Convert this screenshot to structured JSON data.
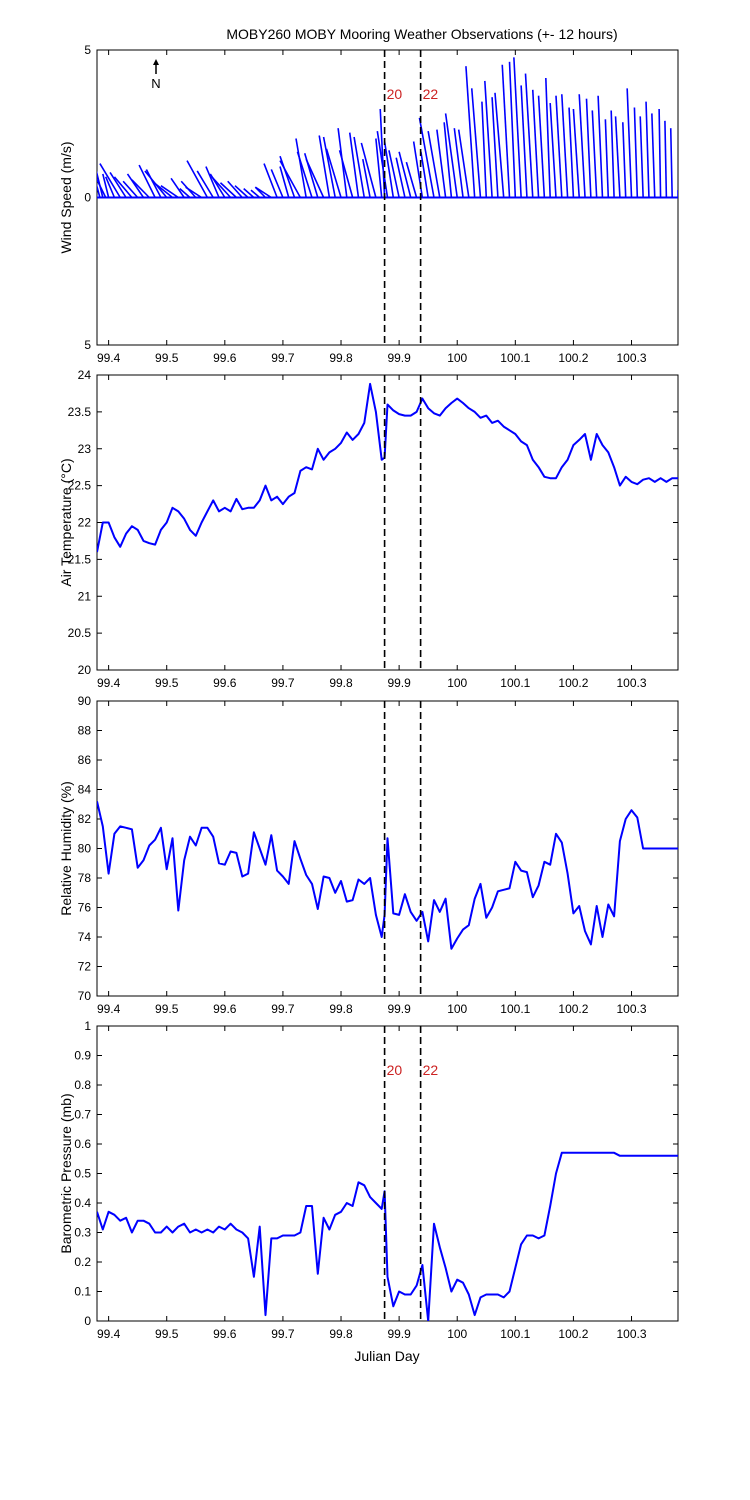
{
  "title": "MOBY260 MOBY Mooring Weather Observations (+- 12 hours)",
  "north_label": "N",
  "colors": {
    "series": "#0000ff",
    "marker": "#000000",
    "marker_label": "#cc2222",
    "axes": "#000000"
  },
  "xlim": [
    99.38,
    100.38
  ],
  "x_ticks": [
    99.4,
    99.5,
    99.6,
    99.7,
    99.8,
    99.9,
    100,
    100.1,
    100.2,
    100.3
  ],
  "x_tick_labels": [
    "99.4",
    "99.5",
    "99.6",
    "99.7",
    "99.8",
    "99.9",
    "100",
    "100.1",
    "100.2",
    "100.3"
  ],
  "xlabel": "Julian Day",
  "markers": [
    {
      "x": 99.875,
      "label": "20"
    },
    {
      "x": 99.937,
      "label": "22"
    }
  ],
  "chart_data": [
    {
      "type": "line",
      "name": "wind",
      "chart_variant": "wind-stick",
      "ylabel": "Wind Speed (m/s)",
      "ylim": [
        -5,
        5
      ],
      "y_ticks": [
        -5,
        0,
        5
      ],
      "y_tick_labels": [
        "5",
        "0",
        "5"
      ],
      "show_marker_labels": true,
      "show_north_arrow": true,
      "sticks": [
        [
          99.38,
          -0.45,
          1.7
        ],
        [
          99.385,
          -0.4,
          1.45
        ],
        [
          99.39,
          -0.3,
          1.2
        ],
        [
          99.395,
          -0.45,
          0.9
        ],
        [
          99.4,
          -0.2,
          0.8
        ],
        [
          99.41,
          -0.3,
          0.7
        ],
        [
          99.42,
          -0.7,
          1.15
        ],
        [
          99.43,
          -0.55,
          0.85
        ],
        [
          99.44,
          -0.6,
          0.7
        ],
        [
          99.45,
          -0.5,
          0.55
        ],
        [
          99.46,
          -0.55,
          0.8
        ],
        [
          99.47,
          -0.6,
          0.6
        ],
        [
          99.48,
          -0.55,
          1.1
        ],
        [
          99.49,
          -0.5,
          0.95
        ],
        [
          99.5,
          -0.75,
          0.9
        ],
        [
          99.51,
          -0.7,
          0.55
        ],
        [
          99.52,
          -0.6,
          0.4
        ],
        [
          99.53,
          -0.45,
          0.65
        ],
        [
          99.54,
          -0.35,
          0.3
        ],
        [
          99.55,
          -0.5,
          0.55
        ],
        [
          99.56,
          -0.55,
          0.35
        ],
        [
          99.57,
          -0.7,
          1.25
        ],
        [
          99.58,
          -0.55,
          0.9
        ],
        [
          99.59,
          -0.45,
          1.05
        ],
        [
          99.6,
          -0.5,
          0.8
        ],
        [
          99.61,
          -0.65,
          0.7
        ],
        [
          99.62,
          -0.55,
          0.5
        ],
        [
          99.63,
          -0.5,
          0.55
        ],
        [
          99.64,
          -0.45,
          0.4
        ],
        [
          99.65,
          -0.35,
          0.3
        ],
        [
          99.66,
          -0.3,
          0.25
        ],
        [
          99.67,
          -0.35,
          0.35
        ],
        [
          99.68,
          -0.55,
          0.35
        ],
        [
          99.69,
          -0.45,
          1.15
        ],
        [
          99.7,
          -0.4,
          0.95
        ],
        [
          99.71,
          -0.3,
          1.05
        ],
        [
          99.72,
          -0.5,
          1.4
        ],
        [
          99.73,
          -0.7,
          1.25
        ],
        [
          99.74,
          -0.35,
          2.0
        ],
        [
          99.75,
          -0.5,
          1.55
        ],
        [
          99.76,
          -0.45,
          1.5
        ],
        [
          99.77,
          -0.6,
          1.3
        ],
        [
          99.78,
          -0.35,
          2.1
        ],
        [
          99.79,
          -0.4,
          2.05
        ],
        [
          99.8,
          -0.5,
          1.65
        ],
        [
          99.81,
          -0.3,
          2.35
        ],
        [
          99.82,
          -0.45,
          1.6
        ],
        [
          99.83,
          -0.3,
          2.2
        ],
        [
          99.84,
          -0.35,
          2.05
        ],
        [
          99.85,
          -0.25,
          1.3
        ],
        [
          99.86,
          -0.5,
          1.85
        ],
        [
          99.87,
          -0.2,
          2.0
        ],
        [
          99.875,
          -0.15,
          3.0
        ],
        [
          99.88,
          -0.35,
          2.25
        ],
        [
          99.89,
          -0.3,
          1.9
        ],
        [
          99.9,
          -0.35,
          1.6
        ],
        [
          99.91,
          -0.3,
          1.35
        ],
        [
          99.92,
          -0.4,
          1.55
        ],
        [
          99.93,
          -0.35,
          1.2
        ],
        [
          99.94,
          -0.3,
          1.9
        ],
        [
          99.95,
          -0.25,
          1.55
        ],
        [
          99.96,
          -0.5,
          2.7
        ],
        [
          99.97,
          -0.4,
          2.25
        ],
        [
          99.98,
          -0.3,
          2.3
        ],
        [
          99.99,
          -0.25,
          2.55
        ],
        [
          100.0,
          -0.4,
          2.85
        ],
        [
          100.01,
          -0.3,
          2.35
        ],
        [
          100.02,
          -0.35,
          2.3
        ],
        [
          100.03,
          -0.3,
          4.45
        ],
        [
          100.04,
          -0.3,
          3.7
        ],
        [
          100.05,
          -0.15,
          3.25
        ],
        [
          100.06,
          -0.25,
          3.95
        ],
        [
          100.07,
          -0.2,
          3.4
        ],
        [
          100.08,
          -0.3,
          3.55
        ],
        [
          100.09,
          -0.25,
          4.5
        ],
        [
          100.1,
          -0.2,
          4.6
        ],
        [
          100.11,
          -0.25,
          4.75
        ],
        [
          100.12,
          -0.2,
          3.8
        ],
        [
          100.13,
          -0.25,
          4.2
        ],
        [
          100.14,
          -0.2,
          3.65
        ],
        [
          100.15,
          -0.2,
          3.45
        ],
        [
          100.16,
          -0.15,
          4.05
        ],
        [
          100.17,
          -0.2,
          3.2
        ],
        [
          100.18,
          -0.2,
          3.45
        ],
        [
          100.19,
          -0.2,
          3.5
        ],
        [
          100.2,
          -0.15,
          3.05
        ],
        [
          100.21,
          -0.2,
          3.0
        ],
        [
          100.22,
          -0.2,
          3.5
        ],
        [
          100.23,
          -0.15,
          3.35
        ],
        [
          100.24,
          -0.15,
          2.95
        ],
        [
          100.25,
          -0.15,
          3.45
        ],
        [
          100.26,
          -0.1,
          2.65
        ],
        [
          100.27,
          -0.1,
          2.95
        ],
        [
          100.28,
          -0.15,
          2.75
        ],
        [
          100.29,
          -0.1,
          2.55
        ],
        [
          100.3,
          -0.15,
          3.7
        ],
        [
          100.31,
          -0.1,
          3.05
        ],
        [
          100.32,
          -0.1,
          2.75
        ],
        [
          100.33,
          -0.1,
          3.25
        ],
        [
          100.34,
          -0.1,
          2.85
        ],
        [
          100.35,
          -0.05,
          3.0
        ],
        [
          100.36,
          -0.05,
          2.6
        ],
        [
          100.37,
          -0.05,
          2.35
        ],
        [
          100.38,
          0,
          0.25
        ]
      ]
    },
    {
      "type": "line",
      "name": "air_temperature",
      "ylabel": "Air Temperature (°C)",
      "ylim": [
        20,
        24
      ],
      "y_ticks": [
        20,
        20.5,
        21,
        21.5,
        22,
        22.5,
        23,
        23.5,
        24
      ],
      "y_tick_labels": [
        "20",
        "20.5",
        "21",
        "21.5",
        "22",
        "22.5",
        "23",
        "23.5",
        "24"
      ],
      "show_marker_labels": false,
      "x": [
        99.38,
        99.39,
        99.4,
        99.41,
        99.42,
        99.43,
        99.44,
        99.45,
        99.46,
        99.47,
        99.48,
        99.49,
        99.5,
        99.51,
        99.52,
        99.53,
        99.54,
        99.55,
        99.56,
        99.57,
        99.58,
        99.59,
        99.6,
        99.61,
        99.62,
        99.63,
        99.64,
        99.65,
        99.66,
        99.67,
        99.68,
        99.69,
        99.7,
        99.71,
        99.72,
        99.73,
        99.74,
        99.75,
        99.76,
        99.77,
        99.78,
        99.79,
        99.8,
        99.81,
        99.82,
        99.83,
        99.84,
        99.85,
        99.86,
        99.87,
        99.875,
        99.88,
        99.89,
        99.9,
        99.91,
        99.92,
        99.93,
        99.94,
        99.95,
        99.96,
        99.97,
        99.98,
        99.99,
        100.0,
        100.01,
        100.02,
        100.03,
        100.04,
        100.05,
        100.06,
        100.07,
        100.08,
        100.09,
        100.1,
        100.11,
        100.12,
        100.13,
        100.14,
        100.15,
        100.16,
        100.17,
        100.18,
        100.19,
        100.2,
        100.21,
        100.22,
        100.23,
        100.24,
        100.25,
        100.26,
        100.27,
        100.28,
        100.29,
        100.3,
        100.31,
        100.32,
        100.33,
        100.34,
        100.35,
        100.36,
        100.37,
        100.38
      ],
      "values": [
        21.6,
        22.0,
        22.0,
        21.8,
        21.67,
        21.85,
        21.95,
        21.9,
        21.75,
        21.72,
        21.7,
        21.9,
        22.0,
        22.2,
        22.15,
        22.05,
        21.9,
        21.82,
        22.0,
        22.15,
        22.3,
        22.15,
        22.2,
        22.15,
        22.32,
        22.18,
        22.2,
        22.2,
        22.3,
        22.5,
        22.3,
        22.35,
        22.25,
        22.35,
        22.4,
        22.7,
        22.75,
        22.72,
        23.0,
        22.85,
        22.95,
        23.0,
        23.08,
        23.22,
        23.12,
        23.2,
        23.35,
        23.88,
        23.5,
        22.85,
        22.88,
        23.6,
        23.52,
        23.47,
        23.45,
        23.45,
        23.5,
        23.68,
        23.55,
        23.48,
        23.45,
        23.55,
        23.62,
        23.68,
        23.62,
        23.55,
        23.5,
        23.42,
        23.45,
        23.35,
        23.38,
        23.3,
        23.25,
        23.2,
        23.1,
        23.05,
        22.85,
        22.75,
        22.62,
        22.6,
        22.6,
        22.75,
        22.85,
        23.05,
        23.12,
        23.2,
        22.85,
        23.2,
        23.05,
        22.95,
        22.75,
        22.5,
        22.62,
        22.55,
        22.52,
        22.58,
        22.6,
        22.55,
        22.6,
        22.55,
        22.6,
        22.6
      ]
    },
    {
      "type": "line",
      "name": "relative_humidity",
      "ylabel": "Relative Humidity (%)",
      "ylim": [
        70,
        90
      ],
      "y_ticks": [
        70,
        72,
        74,
        76,
        78,
        80,
        82,
        84,
        86,
        88,
        90
      ],
      "y_tick_labels": [
        "70",
        "72",
        "74",
        "76",
        "78",
        "80",
        "82",
        "84",
        "86",
        "88",
        "90"
      ],
      "show_marker_labels": false,
      "x": [
        99.38,
        99.39,
        99.4,
        99.41,
        99.42,
        99.43,
        99.44,
        99.45,
        99.46,
        99.47,
        99.48,
        99.49,
        99.5,
        99.51,
        99.52,
        99.53,
        99.54,
        99.55,
        99.56,
        99.57,
        99.58,
        99.59,
        99.6,
        99.61,
        99.62,
        99.63,
        99.64,
        99.65,
        99.66,
        99.67,
        99.68,
        99.69,
        99.7,
        99.71,
        99.72,
        99.73,
        99.74,
        99.75,
        99.76,
        99.77,
        99.78,
        99.79,
        99.8,
        99.81,
        99.82,
        99.83,
        99.84,
        99.85,
        99.86,
        99.87,
        99.875,
        99.88,
        99.89,
        99.9,
        99.91,
        99.92,
        99.93,
        99.94,
        99.95,
        99.96,
        99.97,
        99.98,
        99.99,
        100.0,
        100.01,
        100.02,
        100.03,
        100.04,
        100.05,
        100.06,
        100.07,
        100.08,
        100.09,
        100.1,
        100.11,
        100.12,
        100.13,
        100.14,
        100.15,
        100.16,
        100.17,
        100.18,
        100.19,
        100.2,
        100.21,
        100.22,
        100.23,
        100.24,
        100.25,
        100.26,
        100.27,
        100.28,
        100.29,
        100.3,
        100.31,
        100.32,
        100.33,
        100.34,
        100.35,
        100.36,
        100.37,
        100.38
      ],
      "values": [
        83.2,
        81.5,
        78.3,
        81.0,
        81.5,
        81.4,
        81.3,
        78.7,
        79.2,
        80.2,
        80.6,
        81.4,
        78.6,
        80.7,
        75.8,
        79.2,
        80.8,
        80.2,
        81.4,
        81.4,
        80.8,
        79.0,
        78.9,
        79.8,
        79.7,
        78.1,
        78.3,
        81.1,
        80.0,
        78.9,
        80.9,
        78.5,
        78.1,
        77.6,
        80.5,
        79.3,
        78.2,
        77.6,
        75.9,
        78.1,
        78.0,
        77.0,
        77.8,
        76.4,
        76.5,
        77.9,
        77.6,
        78.0,
        75.5,
        74.0,
        75.5,
        80.7,
        75.6,
        75.5,
        76.9,
        75.7,
        75.1,
        75.7,
        73.7,
        76.5,
        75.7,
        76.6,
        73.2,
        73.9,
        74.5,
        74.8,
        76.6,
        77.6,
        75.3,
        76.0,
        77.1,
        77.2,
        77.3,
        79.1,
        78.5,
        78.4,
        76.7,
        77.5,
        79.1,
        78.9,
        81.0,
        80.4,
        78.3,
        75.6,
        76.1,
        74.4,
        73.5,
        76.1,
        74.0,
        76.2,
        75.4,
        80.5,
        82.0,
        82.6,
        82.1,
        80.0,
        80.0,
        80.0,
        80.0,
        80.0,
        80.0,
        80.0
      ]
    },
    {
      "type": "line",
      "name": "barometric_pressure",
      "ylabel": "Barometric Pressure (mb)",
      "ylim": [
        0,
        1
      ],
      "y_ticks": [
        0,
        0.1,
        0.2,
        0.3,
        0.4,
        0.5,
        0.6,
        0.7,
        0.8,
        0.9,
        1
      ],
      "y_tick_labels": [
        "0",
        "0.1",
        "0.2",
        "0.3",
        "0.4",
        "0.5",
        "0.6",
        "0.7",
        "0.8",
        "0.9",
        "1"
      ],
      "show_marker_labels": true,
      "x": [
        99.38,
        99.39,
        99.4,
        99.41,
        99.42,
        99.43,
        99.44,
        99.45,
        99.46,
        99.47,
        99.48,
        99.49,
        99.5,
        99.51,
        99.52,
        99.53,
        99.54,
        99.55,
        99.56,
        99.57,
        99.58,
        99.59,
        99.6,
        99.61,
        99.62,
        99.63,
        99.64,
        99.65,
        99.66,
        99.67,
        99.68,
        99.69,
        99.7,
        99.71,
        99.72,
        99.73,
        99.74,
        99.75,
        99.76,
        99.77,
        99.78,
        99.79,
        99.8,
        99.81,
        99.82,
        99.83,
        99.84,
        99.85,
        99.86,
        99.87,
        99.875,
        99.88,
        99.89,
        99.9,
        99.91,
        99.92,
        99.93,
        99.94,
        99.95,
        99.96,
        99.97,
        99.98,
        99.99,
        100.0,
        100.01,
        100.02,
        100.03,
        100.04,
        100.05,
        100.06,
        100.07,
        100.08,
        100.09,
        100.1,
        100.11,
        100.12,
        100.13,
        100.14,
        100.15,
        100.16,
        100.17,
        100.18,
        100.19,
        100.2,
        100.21,
        100.22,
        100.23,
        100.24,
        100.25,
        100.26,
        100.27,
        100.28,
        100.29,
        100.3,
        100.31,
        100.32,
        100.33,
        100.34,
        100.35,
        100.36,
        100.37,
        100.38
      ],
      "values": [
        0.37,
        0.31,
        0.37,
        0.36,
        0.34,
        0.35,
        0.3,
        0.34,
        0.34,
        0.33,
        0.3,
        0.3,
        0.32,
        0.3,
        0.32,
        0.33,
        0.3,
        0.31,
        0.3,
        0.31,
        0.3,
        0.32,
        0.31,
        0.33,
        0.31,
        0.3,
        0.28,
        0.15,
        0.32,
        0.02,
        0.28,
        0.28,
        0.29,
        0.29,
        0.29,
        0.3,
        0.39,
        0.39,
        0.16,
        0.35,
        0.31,
        0.36,
        0.37,
        0.4,
        0.39,
        0.47,
        0.46,
        0.42,
        0.4,
        0.38,
        0.44,
        0.15,
        0.05,
        0.1,
        0.09,
        0.09,
        0.12,
        0.19,
        0.0,
        0.33,
        0.25,
        0.18,
        0.1,
        0.14,
        0.13,
        0.09,
        0.02,
        0.08,
        0.09,
        0.09,
        0.09,
        0.08,
        0.1,
        0.18,
        0.26,
        0.29,
        0.29,
        0.28,
        0.29,
        0.39,
        0.5,
        0.57,
        0.57,
        0.57,
        0.57,
        0.57,
        0.57,
        0.57,
        0.57,
        0.57,
        0.57,
        0.56,
        0.56,
        0.56,
        0.56,
        0.56,
        0.56,
        0.56,
        0.56,
        0.56,
        0.56,
        0.56
      ]
    }
  ]
}
